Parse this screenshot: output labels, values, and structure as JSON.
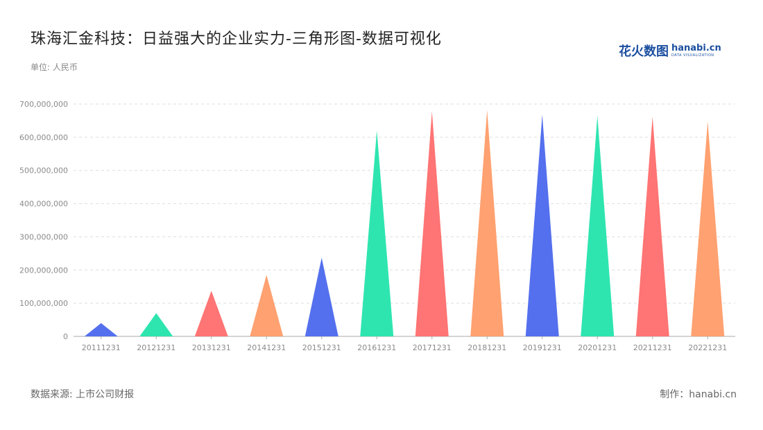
{
  "header": {
    "title": "珠海汇金科技：日益强大的企业实力-三角形图-数据可视化",
    "unit": "单位: 人民币"
  },
  "logo": {
    "cn": "花火数图",
    "en": "hanabi.cn",
    "sub": "DATA VISUALIZATION"
  },
  "footer": {
    "source": "数据来源: 上市公司财报",
    "credit": "制作：hanabi.cn"
  },
  "colors": {
    "blue": "#5470ee",
    "green": "#2ee5b0",
    "red": "#ff7474",
    "orange": "#ffa170",
    "grid": "#dddddd",
    "axis": "#aaaaaa"
  },
  "chart_data": {
    "type": "bar",
    "shape": "triangle",
    "categories": [
      "20111231",
      "20121231",
      "20131231",
      "20141231",
      "20151231",
      "20161231",
      "20171231",
      "20181231",
      "20191231",
      "20201231",
      "20211231",
      "20221231"
    ],
    "values": [
      40000000,
      70000000,
      137000000,
      185000000,
      237000000,
      620000000,
      678000000,
      682000000,
      668000000,
      665000000,
      662000000,
      648000000
    ],
    "bar_colors": [
      "blue",
      "green",
      "red",
      "orange",
      "blue",
      "green",
      "red",
      "orange",
      "blue",
      "green",
      "red",
      "orange"
    ],
    "ylim": [
      0,
      700000000
    ],
    "yticks": [
      0,
      100000000,
      200000000,
      300000000,
      400000000,
      500000000,
      600000000,
      700000000
    ],
    "ytick_labels": [
      "0",
      "100,000,000",
      "200,000,000",
      "300,000,000",
      "400,000,000",
      "500,000,000",
      "600,000,000",
      "700,000,000"
    ],
    "grid": true,
    "legend": "none"
  }
}
